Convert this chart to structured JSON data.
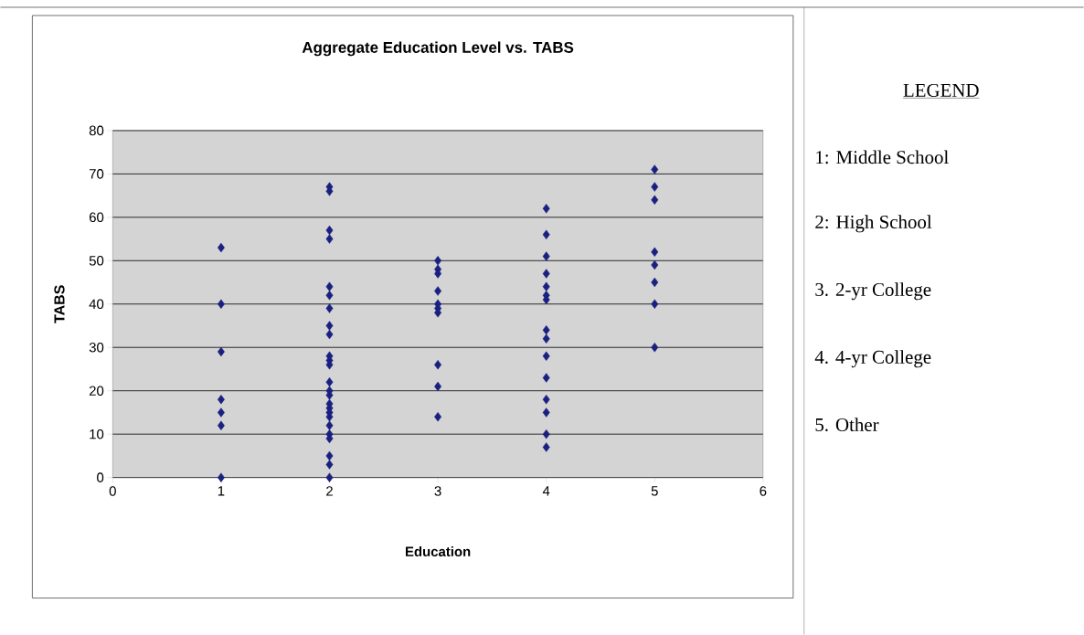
{
  "chart_data": {
    "type": "scatter",
    "title": "Aggregate Education Level vs. TABS",
    "xlabel": "Education",
    "ylabel": "TABS",
    "annotations": [
      "LEGEND",
      "1: Middle School",
      "2: High School",
      "3. 2-yr College",
      "4. 4-yr College",
      "5. Other"
    ],
    "series": [
      {
        "color": "#1a2080",
        "x": [
          1,
          1,
          1,
          1,
          1,
          1,
          1,
          2,
          2,
          2,
          2,
          2,
          2,
          2,
          2,
          2,
          2,
          2,
          2,
          2,
          2,
          2,
          2,
          2,
          2,
          2,
          2,
          2,
          2,
          2,
          2,
          2,
          3,
          3,
          3,
          3,
          3,
          3,
          3,
          3,
          3,
          3,
          4,
          4,
          4,
          4,
          4,
          4,
          4,
          4,
          4,
          4,
          4,
          4,
          4,
          4,
          4,
          5,
          5,
          5,
          5,
          5,
          5,
          5,
          5
        ],
        "values": [
          53,
          40,
          29,
          18,
          15,
          12,
          0,
          67,
          66,
          57,
          55,
          44,
          42,
          39,
          35,
          33,
          28,
          27,
          26,
          22,
          20,
          19,
          17,
          16,
          15,
          14,
          12,
          10,
          9,
          5,
          3,
          0,
          50,
          48,
          47,
          43,
          40,
          39,
          38,
          26,
          21,
          14,
          62,
          56,
          51,
          47,
          44,
          42,
          41,
          34,
          32,
          28,
          23,
          18,
          15,
          10,
          7,
          71,
          67,
          64,
          52,
          49,
          45,
          40,
          30
        ]
      }
    ],
    "xlim": [
      0,
      6
    ],
    "ylim": [
      0,
      80
    ],
    "xticks": [
      0,
      1,
      2,
      3,
      4,
      5,
      6
    ],
    "yticks": [
      0,
      10,
      20,
      30,
      40,
      50,
      60,
      70,
      80
    ],
    "grid": "y",
    "marker": "diamond"
  }
}
